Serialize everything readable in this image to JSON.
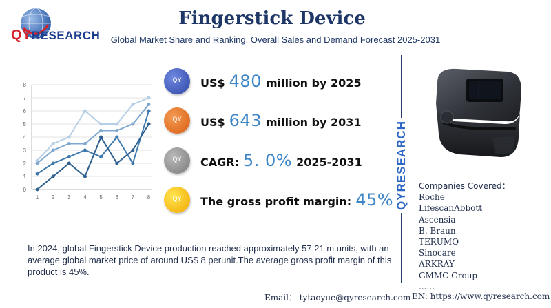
{
  "logo": {
    "prefix": "QY",
    "rest": "RESEARCH"
  },
  "header": {
    "title": "Fingerstick Device",
    "subtitle": "Global Market Share and Ranking, Overall Sales and Demand Forecast 2025-2031"
  },
  "metrics": [
    {
      "prefix": "US$",
      "value": "480",
      "suffix": "million by 2025",
      "icon": "qy-badge-icon",
      "color": "#2e46a5"
    },
    {
      "prefix": "US$",
      "value": "643",
      "suffix": "million by 2031",
      "icon": "qy-badge-icon",
      "color": "#d95e13"
    },
    {
      "prefix": "CAGR:",
      "value": "5. 0%",
      "suffix": "2025-2031",
      "icon": "qy-badge-icon",
      "color": "#7a7a7a"
    },
    {
      "prefix": "The gross profit margin:",
      "value": "45%",
      "suffix": "",
      "icon": "qy-badge-icon",
      "color": "#f1a800"
    }
  ],
  "brand_vertical": "QYRESEARCH",
  "companies": {
    "heading": "Companies Covered：",
    "items": [
      "Roche",
      "LifescanAbbott",
      "Ascensia",
      "B. Braun",
      "TERUMO",
      "Sinocare",
      "ARKRAY",
      "GMMC Group",
      "......"
    ]
  },
  "description": "In 2024, global Fingerstick Device production reached approximately 57.21 m units, with an average global market price of around US$ 8 perunit.The average gross profit margin of this product is 45%.",
  "footer": {
    "email": "Email： tytaoyue@qyresearch.com",
    "website": "EN: https://www.qyresearch.com"
  },
  "chart_data": {
    "type": "line",
    "x": [
      1,
      2,
      3,
      4,
      5,
      6,
      7,
      8
    ],
    "x_ticks": [
      "1",
      "2",
      "3",
      "4",
      "5",
      "6",
      "7",
      "8"
    ],
    "y_ticks": [
      "0",
      "1",
      "2",
      "3",
      "4",
      "5",
      "6",
      "7",
      "8"
    ],
    "ylim": [
      0,
      8
    ],
    "grid": true,
    "series": [
      {
        "values": [
          0,
          1,
          2,
          1,
          4,
          2,
          3,
          5
        ],
        "color": "#2e5f8e"
      },
      {
        "values": [
          1.2,
          2,
          2.5,
          3,
          2.5,
          4,
          2,
          6
        ],
        "color": "#3e79ad"
      },
      {
        "values": [
          2,
          3,
          3.5,
          3.5,
          4.5,
          4.5,
          5,
          6.5
        ],
        "color": "#7fa8d1"
      },
      {
        "values": [
          2.2,
          3.5,
          4,
          6,
          5,
          5,
          6.5,
          7
        ],
        "color": "#b6cfe6"
      }
    ]
  }
}
